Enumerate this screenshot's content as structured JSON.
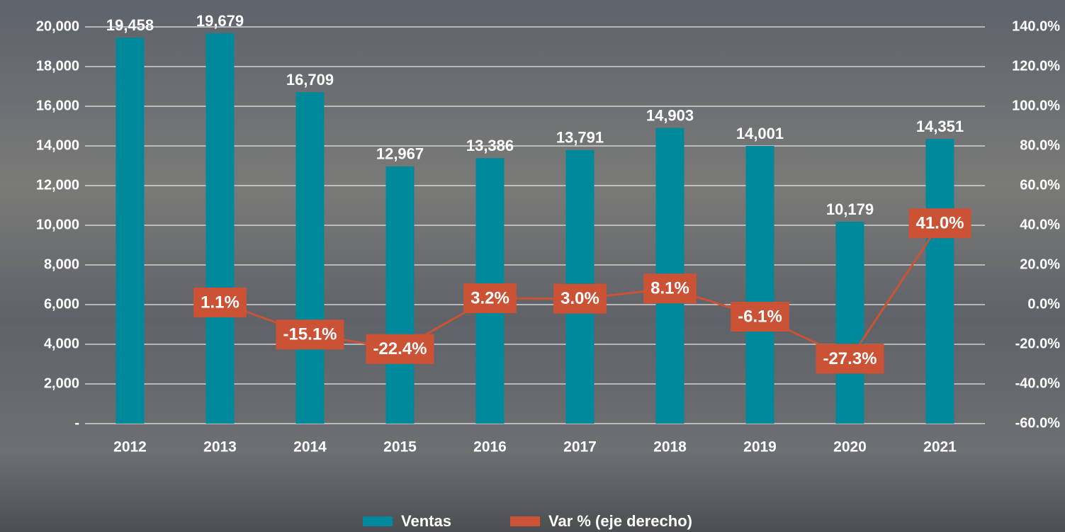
{
  "chart_data": {
    "type": "bar_line",
    "categories": [
      "2012",
      "2013",
      "2014",
      "2015",
      "2016",
      "2017",
      "2018",
      "2019",
      "2020",
      "2021"
    ],
    "series": [
      {
        "name": "Ventas",
        "type": "bar",
        "color": "#00889b",
        "axis": "y",
        "values": [
          19458,
          19679,
          16709,
          12967,
          13386,
          13791,
          14903,
          14001,
          10179,
          14351
        ],
        "value_labels": [
          "19,458",
          "19,679",
          "16,709",
          "12,967",
          "13,386",
          "13,791",
          "14,903",
          "14,001",
          "10,179",
          "14,351"
        ]
      },
      {
        "name": "Var % (eje derecho)",
        "type": "line",
        "color": "#cc5236",
        "axis": "y2",
        "values": [
          null,
          1.1,
          -15.1,
          -22.4,
          3.2,
          3.0,
          8.1,
          -6.1,
          -27.3,
          41.0
        ],
        "value_labels": [
          null,
          "1.1%",
          "-15.1%",
          "-22.4%",
          "3.2%",
          "3.0%",
          "8.1%",
          "-6.1%",
          "-27.3%",
          "41.0%"
        ]
      }
    ],
    "ylim": [
      0,
      20000
    ],
    "yticks": [
      {
        "value": 0,
        "label": "-"
      },
      {
        "value": 2000,
        "label": "2,000"
      },
      {
        "value": 4000,
        "label": "4,000"
      },
      {
        "value": 6000,
        "label": "6,000"
      },
      {
        "value": 8000,
        "label": "8,000"
      },
      {
        "value": 10000,
        "label": "10,000"
      },
      {
        "value": 12000,
        "label": "12,000"
      },
      {
        "value": 14000,
        "label": "14,000"
      },
      {
        "value": 16000,
        "label": "16,000"
      },
      {
        "value": 18000,
        "label": "18,000"
      },
      {
        "value": 20000,
        "label": "20,000"
      }
    ],
    "y2lim": [
      -60,
      140
    ],
    "y2ticks": [
      {
        "value": -60,
        "label": "-60.0%"
      },
      {
        "value": -40,
        "label": "-40.0%"
      },
      {
        "value": -20,
        "label": "-20.0%"
      },
      {
        "value": 0,
        "label": "0.0%"
      },
      {
        "value": 20,
        "label": "20.0%"
      },
      {
        "value": 40,
        "label": "40.0%"
      },
      {
        "value": 60,
        "label": "60.0%"
      },
      {
        "value": 80,
        "label": "80.0%"
      },
      {
        "value": 100,
        "label": "100.0%"
      },
      {
        "value": 120,
        "label": "120.0%"
      },
      {
        "value": 140,
        "label": "140.0%"
      }
    ],
    "grid": true,
    "legend": "bottom"
  }
}
